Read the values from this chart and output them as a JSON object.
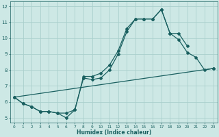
{
  "xlabel": "Humidex (Indice chaleur)",
  "bg_color": "#cde8e5",
  "grid_color": "#aacfcc",
  "line_color": "#1a6060",
  "xlim": [
    -0.5,
    23.5
  ],
  "ylim": [
    4.7,
    12.3
  ],
  "xticks": [
    0,
    1,
    2,
    3,
    4,
    5,
    6,
    7,
    8,
    9,
    10,
    11,
    12,
    13,
    14,
    15,
    16,
    17,
    18,
    19,
    20,
    21,
    22,
    23
  ],
  "yticks": [
    5,
    6,
    7,
    8,
    9,
    10,
    11,
    12
  ],
  "line1_x": [
    0,
    1,
    2,
    3,
    4,
    5,
    6,
    7,
    8,
    9,
    10,
    11,
    12,
    13,
    14,
    15,
    16,
    17,
    18,
    19,
    20,
    21,
    22,
    23
  ],
  "line1_y": [
    6.3,
    5.9,
    5.7,
    5.4,
    5.4,
    5.3,
    5.0,
    5.5,
    7.5,
    7.4,
    7.5,
    8.0,
    9.0,
    10.4,
    11.2,
    11.2,
    11.2,
    11.8,
    10.3,
    9.9,
    9.1,
    8.8,
    8.0,
    8.1
  ],
  "line2_x": [
    0,
    1,
    2,
    3,
    4,
    5,
    6,
    7,
    8,
    9,
    10,
    11,
    12,
    13,
    14,
    15,
    16,
    17,
    18,
    19,
    20
  ],
  "line2_y": [
    6.3,
    5.9,
    5.7,
    5.4,
    5.4,
    5.3,
    5.3,
    5.5,
    7.6,
    7.6,
    7.8,
    8.3,
    9.2,
    10.6,
    11.2,
    11.2,
    11.2,
    11.8,
    10.3,
    10.3,
    9.5
  ],
  "line3_x": [
    0,
    23
  ],
  "line3_y": [
    6.3,
    8.1
  ],
  "marker_size": 2.0,
  "linewidth": 0.9
}
